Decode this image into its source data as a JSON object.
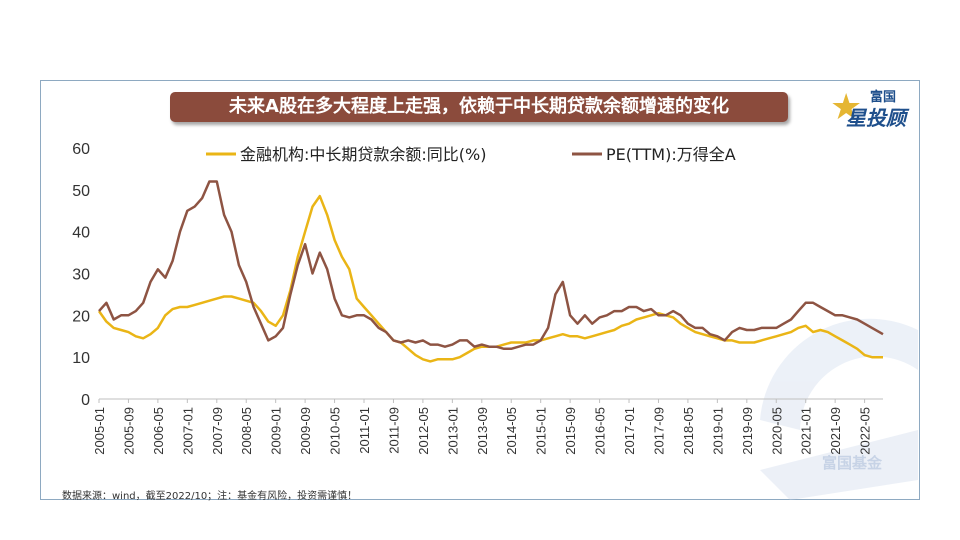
{
  "title": "未来A股在多大程度上走强，依赖于中长期贷款余额增速的变化",
  "logo": {
    "line1": "富国",
    "line2": "星投顾",
    "icon": "star-icon"
  },
  "source_note": "数据来源：wind，截至2022/10；注：基金有风险，投资需谨慎！",
  "watermark": "富国基金",
  "colors": {
    "loan": "#eab516",
    "pe": "#8e5443",
    "title_bg": "#8b4b3c"
  },
  "chart_data": {
    "type": "line",
    "title": "",
    "xlabel": "",
    "ylabel": "",
    "ylim": [
      0,
      60
    ],
    "yticks": [
      0,
      10,
      20,
      30,
      40,
      50,
      60
    ],
    "xticks": [
      "2005-01",
      "2005-09",
      "2006-05",
      "2007-01",
      "2007-09",
      "2008-05",
      "2009-01",
      "2009-09",
      "2010-05",
      "2011-01",
      "2011-09",
      "2012-05",
      "2013-01",
      "2013-09",
      "2014-05",
      "2015-01",
      "2015-09",
      "2016-05",
      "2017-01",
      "2017-09",
      "2018-05",
      "2019-01",
      "2019-09",
      "2020-05",
      "2021-01",
      "2021-09",
      "2022-05"
    ],
    "x": [
      "2005-01",
      "2005-03",
      "2005-05",
      "2005-07",
      "2005-09",
      "2005-11",
      "2006-01",
      "2006-03",
      "2006-05",
      "2006-07",
      "2006-09",
      "2006-11",
      "2007-01",
      "2007-03",
      "2007-05",
      "2007-07",
      "2007-09",
      "2007-11",
      "2008-01",
      "2008-03",
      "2008-05",
      "2008-07",
      "2008-09",
      "2008-11",
      "2009-01",
      "2009-03",
      "2009-05",
      "2009-07",
      "2009-09",
      "2009-11",
      "2010-01",
      "2010-03",
      "2010-05",
      "2010-07",
      "2010-09",
      "2010-11",
      "2011-01",
      "2011-03",
      "2011-05",
      "2011-07",
      "2011-09",
      "2011-11",
      "2012-01",
      "2012-03",
      "2012-05",
      "2012-07",
      "2012-09",
      "2012-11",
      "2013-01",
      "2013-03",
      "2013-05",
      "2013-07",
      "2013-09",
      "2013-11",
      "2014-01",
      "2014-03",
      "2014-05",
      "2014-07",
      "2014-09",
      "2014-11",
      "2015-01",
      "2015-03",
      "2015-05",
      "2015-07",
      "2015-09",
      "2015-11",
      "2016-01",
      "2016-03",
      "2016-05",
      "2016-07",
      "2016-09",
      "2016-11",
      "2017-01",
      "2017-03",
      "2017-05",
      "2017-07",
      "2017-09",
      "2017-11",
      "2018-01",
      "2018-03",
      "2018-05",
      "2018-07",
      "2018-09",
      "2018-11",
      "2019-01",
      "2019-03",
      "2019-05",
      "2019-07",
      "2019-09",
      "2019-11",
      "2020-01",
      "2020-03",
      "2020-05",
      "2020-07",
      "2020-09",
      "2020-11",
      "2021-01",
      "2021-03",
      "2021-05",
      "2021-07",
      "2021-09",
      "2021-11",
      "2022-01",
      "2022-03",
      "2022-05",
      "2022-07",
      "2022-09",
      "2022-10"
    ],
    "series": [
      {
        "name": "金融机构:中长期贷款余额:同比(%)",
        "color": "#eab516",
        "values": [
          21,
          18.5,
          17,
          16.5,
          16,
          15,
          14.5,
          15.5,
          17,
          20,
          21.5,
          22,
          22,
          22.5,
          23,
          23.5,
          24,
          24.5,
          24.5,
          24,
          23.5,
          23,
          21,
          18.5,
          17.5,
          20,
          26,
          34,
          40,
          46,
          48.5,
          44,
          38,
          34,
          31,
          24,
          22,
          20,
          18,
          16,
          14,
          13.5,
          12,
          10.5,
          9.5,
          9,
          9.5,
          9.5,
          9.5,
          10,
          11,
          12,
          12.5,
          12.5,
          12.5,
          13,
          13.5,
          13.5,
          13.5,
          14,
          14,
          14.5,
          15,
          15.5,
          15,
          15,
          14.5,
          15,
          15.5,
          16,
          16.5,
          17.5,
          18,
          19,
          19.5,
          20,
          20.5,
          20,
          19.5,
          18,
          17,
          16,
          15.5,
          15,
          14.5,
          14,
          14,
          13.5,
          13.5,
          13.5,
          14,
          14.5,
          15,
          15.5,
          16,
          17,
          17.5,
          16,
          16.5,
          16,
          15,
          14,
          13,
          12,
          10.5,
          10,
          10,
          10
        ]
      },
      {
        "name": "PE(TTM):万得全A",
        "color": "#8e5443",
        "values": [
          21,
          23,
          19,
          20,
          20,
          21,
          23,
          28,
          31,
          29,
          33,
          40,
          45,
          46,
          48,
          52,
          52,
          44,
          40,
          32,
          28,
          22,
          18,
          14,
          15,
          17,
          25,
          32,
          37,
          30,
          35,
          31,
          24,
          20,
          19.5,
          20,
          20,
          19,
          17,
          16,
          14,
          13.5,
          14,
          13.5,
          14,
          13,
          13,
          12.5,
          13,
          14,
          14,
          12.5,
          13,
          12.5,
          12.5,
          12,
          12,
          12.5,
          13,
          13,
          14,
          17,
          25,
          28,
          20,
          18,
          20,
          18,
          19.5,
          20,
          21,
          21,
          22,
          22,
          21,
          21.5,
          20,
          20,
          21,
          20,
          18,
          17,
          17,
          15.5,
          15,
          14,
          16,
          17,
          16.5,
          16.5,
          17,
          17,
          17,
          18,
          19,
          21,
          23,
          23,
          22,
          21,
          20,
          20,
          19.5,
          19,
          18,
          17,
          16,
          15.5
        ]
      }
    ],
    "legend": "top"
  }
}
